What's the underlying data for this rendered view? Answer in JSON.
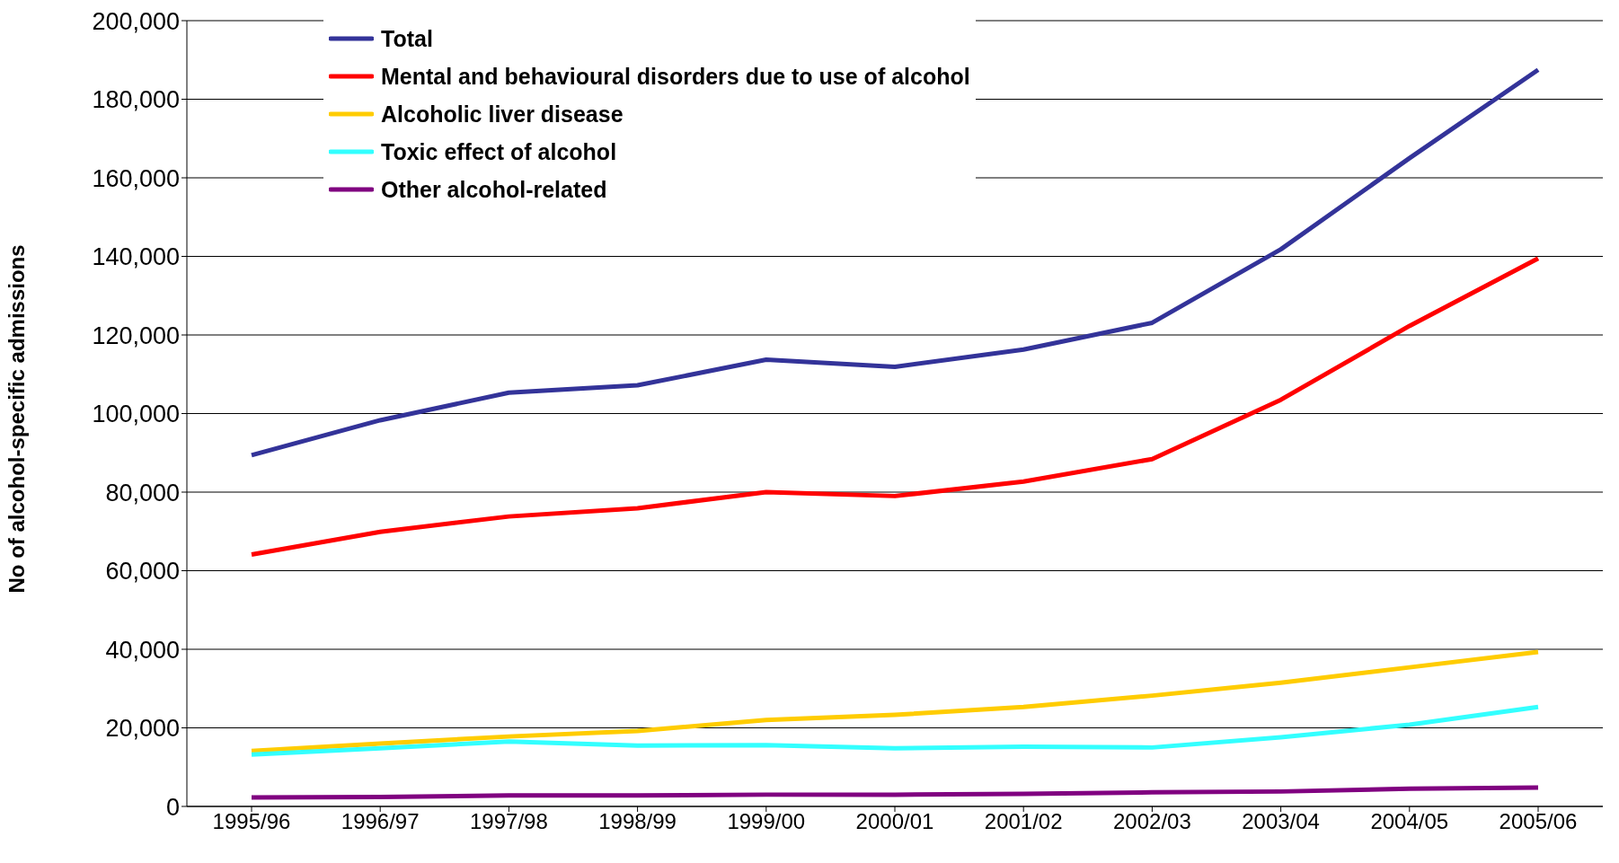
{
  "chart_data": {
    "type": "line",
    "ylabel": "No of alcohol-specific admissions",
    "categories": [
      "1995/96",
      "1996/97",
      "1997/98",
      "1998/99",
      "1999/00",
      "2000/01",
      "2001/02",
      "2002/03",
      "2003/04",
      "2004/05",
      "2005/06"
    ],
    "series": [
      {
        "name": "Total",
        "color": "#333399",
        "values": [
          89400,
          98300,
          105300,
          107200,
          113700,
          111900,
          116300,
          123100,
          141800,
          165000,
          187500
        ]
      },
      {
        "name": "Mental and behavioural disorders due to use of alcohol",
        "color": "#ff0000",
        "values": [
          64100,
          69900,
          73800,
          75900,
          80000,
          79000,
          82700,
          88400,
          103500,
          122300,
          139500
        ]
      },
      {
        "name": "Alcoholic liver disease",
        "color": "#ffcc00",
        "values": [
          14100,
          16000,
          17800,
          19200,
          22000,
          23300,
          25300,
          28200,
          31500,
          35400,
          39300
        ]
      },
      {
        "name": "Toxic effect of alcohol",
        "color": "#33ffff",
        "values": [
          13200,
          14800,
          16500,
          15500,
          15600,
          14800,
          15200,
          15000,
          17600,
          20800,
          25300
        ]
      },
      {
        "name": "Other alcohol-related",
        "color": "#800080",
        "values": [
          2300,
          2400,
          2800,
          2800,
          3000,
          3000,
          3200,
          3600,
          3800,
          4500,
          4800
        ]
      }
    ],
    "ylim": [
      0,
      200000
    ],
    "yticks": [
      0,
      {
        "value": 20000,
        "label": "20,000"
      },
      {
        "value": 40000,
        "label": "40,000"
      },
      {
        "value": 60000,
        "label": "60,000"
      },
      {
        "value": 80000,
        "label": "80,000"
      },
      {
        "value": 100000,
        "label": "100,000"
      },
      {
        "value": 120000,
        "label": "120,000"
      },
      {
        "value": 140000,
        "label": "140,000"
      },
      {
        "value": 160000,
        "label": "160,000"
      },
      {
        "value": 180000,
        "label": "180,000"
      },
      {
        "value": 200000,
        "label": "200,000"
      }
    ],
    "grid": "y",
    "legend": "top left",
    "marker": "none",
    "line_style": "solid"
  }
}
